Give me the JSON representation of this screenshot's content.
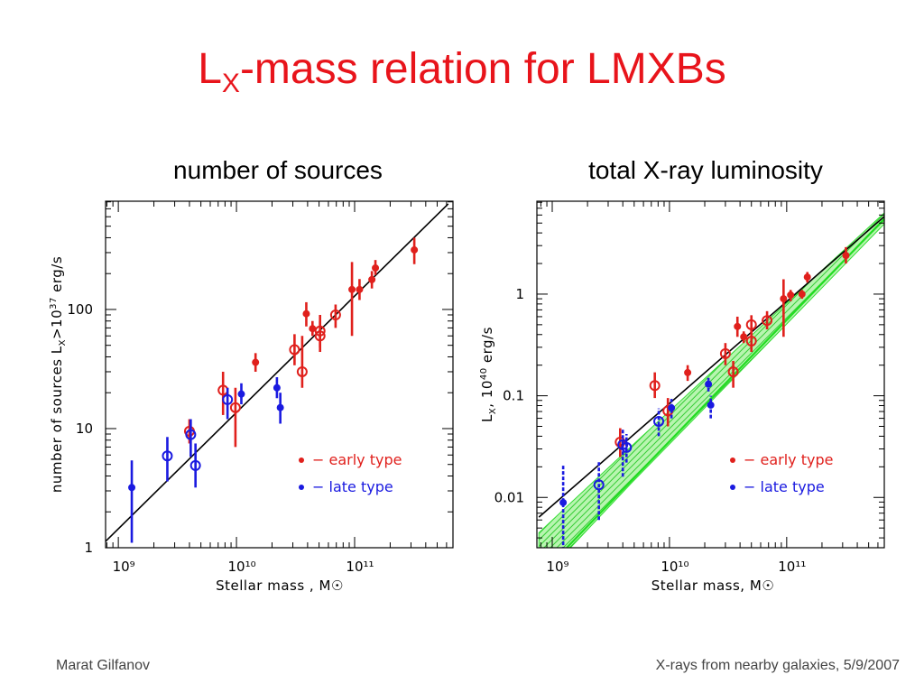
{
  "title_parts": [
    "L",
    "X",
    "-mass relation for LMXBs"
  ],
  "author": "Marat Gilfanov",
  "footer": "X-rays from nearby galaxies, 5/9/2007",
  "chart_data": [
    {
      "type": "scatter",
      "title": "number of sources",
      "x_label": "Stellar mass , M☉",
      "y_label": [
        "number of sources L",
        "X",
        ">10",
        "37",
        " erg/s"
      ],
      "log_x": true,
      "log_y": true,
      "xlim": [
        780000000.0,
        680000000000.0
      ],
      "ylim": [
        1,
        810
      ],
      "xticks": [
        {
          "value": 1000000000.0,
          "label": "10⁹"
        },
        {
          "value": 10000000000.0,
          "label": "10¹⁰"
        },
        {
          "value": 100000000000.0,
          "label": "10¹¹"
        }
      ],
      "yticks": [
        1,
        10,
        100
      ],
      "legend": "lower right",
      "series": [
        {
          "name": "− early type",
          "color": "#e0201c",
          "x": [
            4000000000.0,
            7700000000.0,
            9800000000.0,
            14500000000.0,
            31000000000.0,
            36000000000.0,
            39000000000.0,
            44000000000.0,
            51000000000.0,
            51000000000.0,
            69000000000.0,
            95000000000.0,
            110000000000.0,
            140000000000.0,
            150000000000.0,
            320000000000.0
          ],
          "values": [
            9.5,
            21,
            15,
            36,
            46,
            30,
            92,
            69,
            66,
            60,
            90,
            147,
            147,
            178,
            223,
            316
          ],
          "lower": [
            7.5,
            13,
            7,
            30,
            34,
            22,
            72,
            60,
            48,
            44,
            70,
            60,
            120,
            150,
            195,
            240
          ],
          "upper": [
            12,
            30,
            22,
            43,
            62,
            60,
            115,
            80,
            90,
            80,
            110,
            250,
            180,
            210,
            260,
            400
          ],
          "open": [
            true,
            true,
            true,
            false,
            true,
            true,
            false,
            false,
            true,
            true,
            true,
            false,
            false,
            false,
            false,
            false
          ],
          "dashed": false
        },
        {
          "name": "− late type",
          "color": "#1a1ae0",
          "x": [
            1300000000.0,
            2600000000.0,
            4100000000.0,
            4500000000.0,
            8400000000.0,
            11000000000.0,
            22000000000.0,
            23500000000.0
          ],
          "values": [
            3.2,
            5.9,
            8.9,
            4.9,
            17.5,
            19.5,
            22,
            15
          ],
          "lower": [
            1.1,
            3.6,
            5.8,
            3.2,
            12,
            16,
            18,
            11
          ],
          "upper": [
            5.4,
            8.5,
            12,
            7.5,
            22,
            24,
            27,
            20
          ],
          "open": [
            false,
            true,
            true,
            true,
            true,
            false,
            false,
            false
          ],
          "dashed": false
        }
      ],
      "lines": [
        {
          "color": "#000000",
          "x": [
            780000000.0,
            620000000000.0
          ],
          "values": [
            1.13,
            770
          ]
        }
      ]
    },
    {
      "type": "scatter",
      "title": "total X-ray luminosity",
      "x_label": "Stellar mass, M☉",
      "y_label": [
        "L",
        "X",
        ",  10",
        "40",
        " erg/s"
      ],
      "log_x": true,
      "log_y": true,
      "xlim": [
        740000000.0,
        680000000000.0
      ],
      "ylim": [
        0.0032,
        8.2
      ],
      "xticks": [
        {
          "value": 1000000000.0,
          "label": "10⁹"
        },
        {
          "value": 10000000000.0,
          "label": "10¹⁰"
        },
        {
          "value": 100000000000.0,
          "label": "10¹¹"
        }
      ],
      "yticks": [
        0.01,
        0.1,
        1
      ],
      "legend": "lower right",
      "series": [
        {
          "name": "− early type",
          "color": "#e0201c",
          "x": [
            3800000000.0,
            7500000000.0,
            9700000000.0,
            14300000000.0,
            30000000000.0,
            35000000000.0,
            38000000000.0,
            43000000000.0,
            50000000000.0,
            50000000000.0,
            68000000000.0,
            94000000000.0,
            108000000000.0,
            135000000000.0,
            150000000000.0,
            320000000000.0
          ],
          "values": [
            0.035,
            0.126,
            0.071,
            0.169,
            0.26,
            0.172,
            0.48,
            0.38,
            0.5,
            0.345,
            0.55,
            0.9,
            0.98,
            1.0,
            1.47,
            2.4
          ],
          "lower": [
            0.025,
            0.095,
            0.05,
            0.14,
            0.2,
            0.12,
            0.38,
            0.33,
            0.4,
            0.27,
            0.45,
            0.38,
            0.85,
            0.9,
            1.3,
            2.0
          ],
          "upper": [
            0.048,
            0.17,
            0.095,
            0.2,
            0.33,
            0.22,
            0.6,
            0.43,
            0.62,
            0.44,
            0.68,
            1.4,
            1.1,
            1.1,
            1.65,
            2.9
          ],
          "open": [
            true,
            true,
            true,
            false,
            true,
            true,
            false,
            false,
            true,
            true,
            true,
            false,
            false,
            false,
            false,
            false
          ],
          "dashed": false
        },
        {
          "name": "− late type",
          "color": "#1a1ae0",
          "x": [
            1240000000.0,
            2500000000.0,
            4000000000.0,
            4300000000.0,
            8100000000.0,
            10400000000.0,
            21500000000.0,
            22500000000.0
          ],
          "values": [
            0.0089,
            0.0133,
            0.033,
            0.031,
            0.056,
            0.076,
            0.13,
            0.081
          ],
          "lower": [
            0.003,
            0.006,
            0.016,
            0.022,
            0.04,
            0.06,
            0.11,
            0.06
          ],
          "upper": [
            0.021,
            0.023,
            0.048,
            0.042,
            0.075,
            0.093,
            0.15,
            0.1
          ],
          "open": [
            false,
            true,
            true,
            true,
            true,
            false,
            false,
            false
          ],
          "dashed": true
        }
      ],
      "band": {
        "color": "#33dd33",
        "x": [
          770000000.0,
          4750000000.0,
          680000000000.0
        ],
        "lower": [
          0.0015,
          0.0139,
          4.9
        ],
        "upper": [
          0.0045,
          0.032,
          6.3
        ]
      },
      "lines": [
        {
          "color": "#000000",
          "x": [
            770000000.0,
            680000000000.0
          ],
          "values": [
            0.0064,
            5.8
          ]
        },
        {
          "color": "#22dd22",
          "x": [
            1330000000.0,
            680000000000.0
          ],
          "values": [
            0.0032,
            5.5
          ]
        }
      ]
    }
  ]
}
